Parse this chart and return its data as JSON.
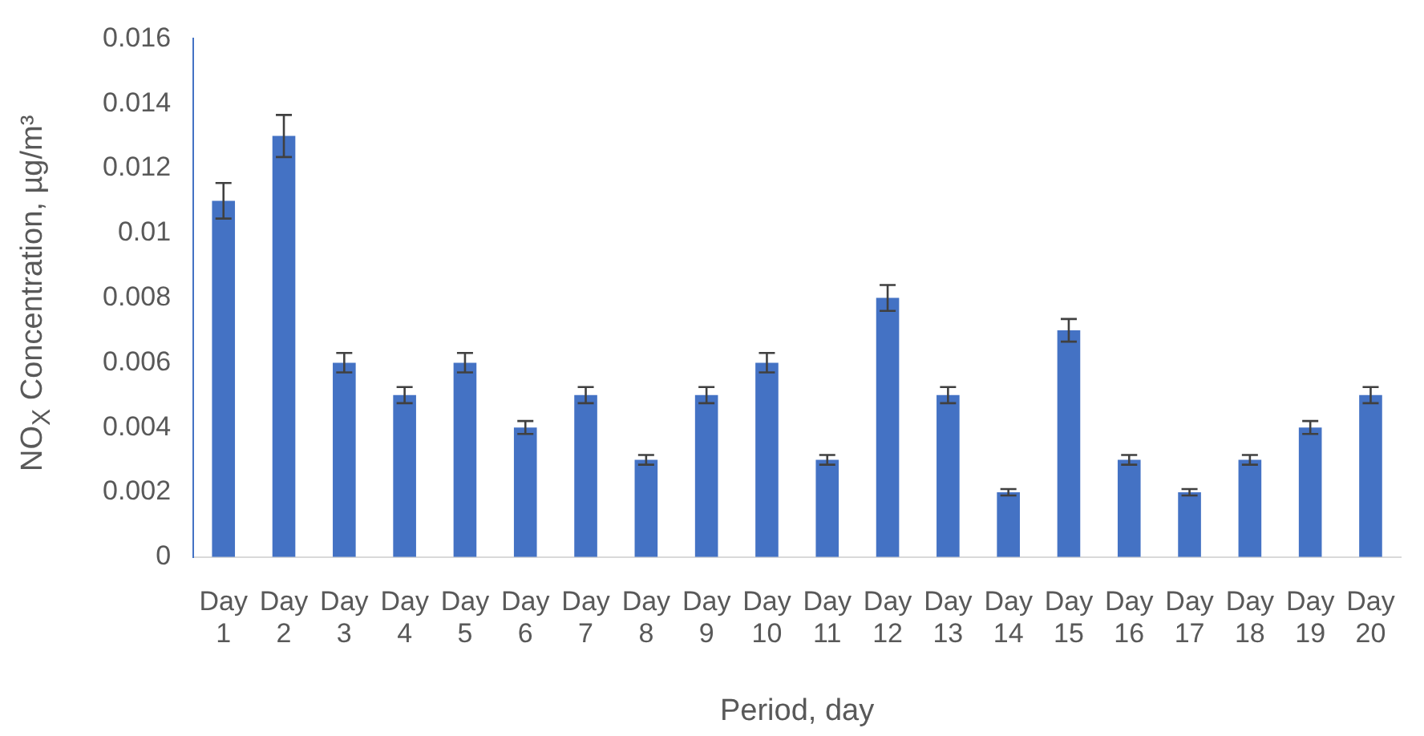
{
  "chart_data": {
    "type": "bar",
    "xlabel": "Period, day",
    "ylabel": "NO$_{X}$ Concentration, µg/m³",
    "categories": [
      "Day 1",
      "Day 2",
      "Day 3",
      "Day 4",
      "Day 5",
      "Day 6",
      "Day 7",
      "Day 8",
      "Day 9",
      "Day 10",
      "Day 11",
      "Day 12",
      "Day 13",
      "Day 14",
      "Day 15",
      "Day 16",
      "Day 17",
      "Day 18",
      "Day 19",
      "Day 20"
    ],
    "values": [
      0.011,
      0.013,
      0.006,
      0.005,
      0.006,
      0.004,
      0.005,
      0.003,
      0.005,
      0.006,
      0.003,
      0.008,
      0.005,
      0.002,
      0.007,
      0.003,
      0.002,
      0.003,
      0.004,
      0.005
    ],
    "errors": [
      0.00055,
      0.00065,
      0.0003,
      0.00025,
      0.0003,
      0.0002,
      0.00025,
      0.00015,
      0.00025,
      0.0003,
      0.00015,
      0.0004,
      0.00025,
      0.0001,
      0.00035,
      0.00015,
      0.0001,
      0.00015,
      0.0002,
      0.00025
    ],
    "color": "#4472c4",
    "ylim": [
      0,
      0.016
    ],
    "yticks": [
      0,
      0.002,
      0.004,
      0.006,
      0.008,
      0.01,
      0.012,
      0.014,
      0.016
    ],
    "grid": false,
    "legend": false
  }
}
